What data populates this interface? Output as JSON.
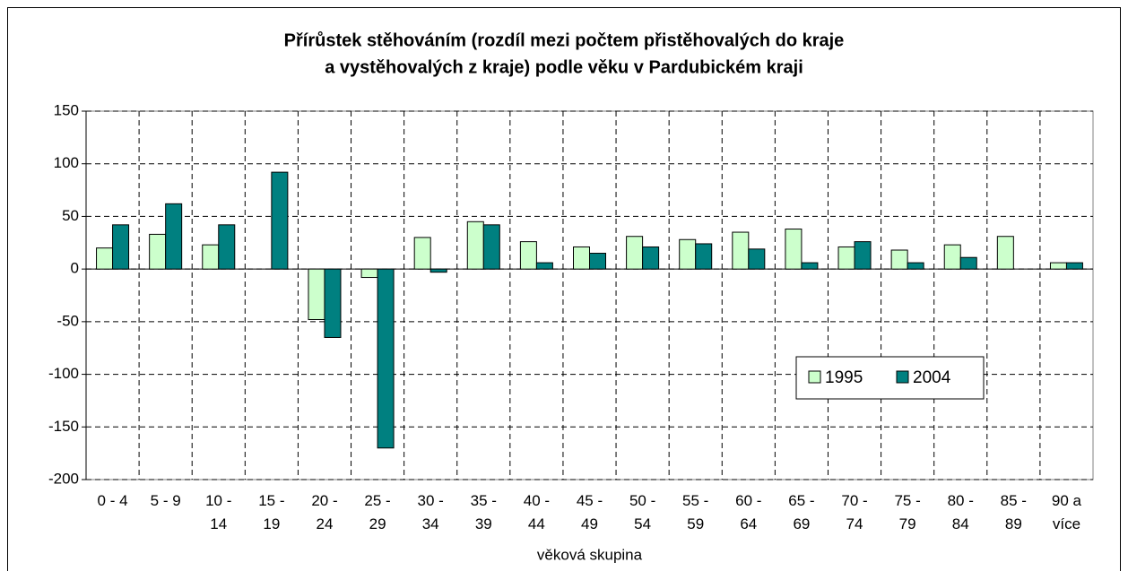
{
  "chart_data": {
    "type": "bar",
    "title": [
      "Přírůstek stěhováním (rozdíl mezi počtem přistěhovalých do kraje",
      "a vystěhovalých z kraje) podle věku v Pardubickém kraji"
    ],
    "x_label": "věková skupina",
    "categories": [
      "0 - 4",
      "5 - 9",
      "10 - 14",
      "15 - 19",
      "20 - 24",
      "25 - 29",
      "30 - 34",
      "35 - 39",
      "40 - 44",
      "45 - 49",
      "50 - 54",
      "55 - 59",
      "60 - 64",
      "65 - 69",
      "70 - 74",
      "75 - 79",
      "80 - 84",
      "85 - 89",
      "90 a více"
    ],
    "series": [
      {
        "name": "1995",
        "color": "#ccffcc",
        "values": [
          20,
          33,
          23,
          0,
          -48,
          -8,
          30,
          45,
          26,
          21,
          31,
          28,
          35,
          38,
          21,
          18,
          23,
          31,
          6
        ]
      },
      {
        "name": "2004",
        "color": "#008080",
        "values": [
          42,
          62,
          42,
          92,
          -65,
          -170,
          -3,
          42,
          6,
          15,
          21,
          24,
          19,
          6,
          26,
          6,
          11,
          0,
          6
        ]
      }
    ],
    "ylim": [
      -200,
      150
    ],
    "yticks": [
      -200,
      -150,
      -100,
      -50,
      0,
      50,
      100,
      150
    ],
    "grid": true,
    "legend": "right"
  }
}
